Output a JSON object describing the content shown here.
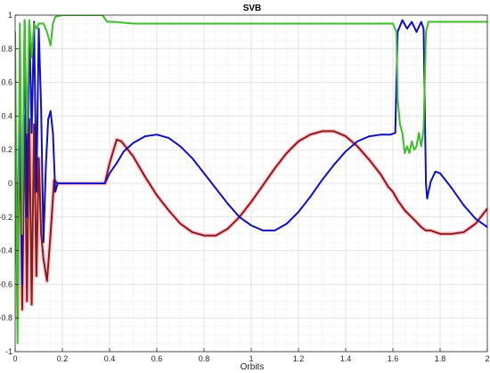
{
  "chart_data": {
    "type": "line",
    "title": "SVB",
    "xlabel": "Orbits",
    "ylabel": "",
    "xlim": [
      0,
      2
    ],
    "ylim": [
      -1,
      1
    ],
    "grid": true,
    "legend": "none",
    "x_ticks": [
      "0",
      "0.2",
      "0.4",
      "0.6",
      "0.8",
      "1",
      "1.2",
      "1.4",
      "1.6",
      "1.8",
      "2"
    ],
    "y_ticks": [
      "-1",
      "-0.8",
      "-0.6",
      "-0.4",
      "-0.2",
      "0",
      "0.2",
      "0.4",
      "0.6",
      "0.8",
      "1"
    ],
    "colors": {
      "blue": "#1010c0",
      "red": "#8b1a1a",
      "green": "#3dbd2a",
      "red_halo": "#ff9fb0",
      "grid": "#e3e3e3",
      "axis": "#262626"
    },
    "series": [
      {
        "color": "blue",
        "points": [
          [
            0.0,
            0.2
          ],
          [
            0.01,
            -0.3
          ],
          [
            0.02,
            0.55
          ],
          [
            0.03,
            -0.6
          ],
          [
            0.04,
            0.97
          ],
          [
            0.05,
            -0.2
          ],
          [
            0.06,
            0.95
          ],
          [
            0.07,
            0.3
          ],
          [
            0.08,
            0.96
          ],
          [
            0.09,
            -0.05
          ],
          [
            0.1,
            0.92
          ],
          [
            0.11,
            0.45
          ],
          [
            0.12,
            -0.35
          ],
          [
            0.13,
            0.1
          ],
          [
            0.14,
            0.38
          ],
          [
            0.15,
            0.43
          ],
          [
            0.16,
            0.3
          ],
          [
            0.17,
            -0.05
          ],
          [
            0.18,
            0.0
          ],
          [
            0.2,
            0.0
          ],
          [
            0.25,
            0.0
          ],
          [
            0.3,
            0.0
          ],
          [
            0.36,
            0.0
          ],
          [
            0.38,
            0.0
          ],
          [
            0.4,
            0.06
          ],
          [
            0.43,
            0.12
          ],
          [
            0.46,
            0.19
          ],
          [
            0.5,
            0.24
          ],
          [
            0.55,
            0.28
          ],
          [
            0.6,
            0.29
          ],
          [
            0.65,
            0.27
          ],
          [
            0.7,
            0.22
          ],
          [
            0.75,
            0.15
          ],
          [
            0.8,
            0.06
          ],
          [
            0.85,
            -0.03
          ],
          [
            0.9,
            -0.12
          ],
          [
            0.95,
            -0.2
          ],
          [
            1.0,
            -0.25
          ],
          [
            1.05,
            -0.28
          ],
          [
            1.1,
            -0.28
          ],
          [
            1.15,
            -0.24
          ],
          [
            1.2,
            -0.17
          ],
          [
            1.25,
            -0.08
          ],
          [
            1.3,
            0.02
          ],
          [
            1.35,
            0.11
          ],
          [
            1.4,
            0.19
          ],
          [
            1.45,
            0.25
          ],
          [
            1.5,
            0.28
          ],
          [
            1.55,
            0.29
          ],
          [
            1.59,
            0.29
          ],
          [
            1.61,
            0.3
          ],
          [
            1.62,
            0.9
          ],
          [
            1.64,
            0.97
          ],
          [
            1.66,
            0.92
          ],
          [
            1.68,
            0.96
          ],
          [
            1.7,
            0.9
          ],
          [
            1.72,
            0.96
          ],
          [
            1.73,
            0.92
          ],
          [
            1.74,
            0.0
          ],
          [
            1.745,
            -0.09
          ],
          [
            1.76,
            0.01
          ],
          [
            1.78,
            0.07
          ],
          [
            1.8,
            0.06
          ],
          [
            1.85,
            -0.03
          ],
          [
            1.9,
            -0.13
          ],
          [
            1.95,
            -0.21
          ],
          [
            2.0,
            -0.26
          ]
        ]
      },
      {
        "color": "red",
        "points": [
          [
            0.0,
            0.2
          ],
          [
            0.01,
            -0.8
          ],
          [
            0.02,
            0.35
          ],
          [
            0.03,
            -0.75
          ],
          [
            0.04,
            0.4
          ],
          [
            0.05,
            -0.7
          ],
          [
            0.06,
            0.38
          ],
          [
            0.07,
            -0.72
          ],
          [
            0.08,
            0.35
          ],
          [
            0.09,
            -0.55
          ],
          [
            0.1,
            0.15
          ],
          [
            0.11,
            -0.3
          ],
          [
            0.12,
            -0.45
          ],
          [
            0.135,
            -0.58
          ],
          [
            0.15,
            -0.3
          ],
          [
            0.165,
            0.02
          ],
          [
            0.18,
            0.0
          ],
          [
            0.2,
            0.0
          ],
          [
            0.25,
            0.0
          ],
          [
            0.3,
            0.0
          ],
          [
            0.36,
            0.0
          ],
          [
            0.38,
            0.0
          ],
          [
            0.4,
            0.12
          ],
          [
            0.43,
            0.26
          ],
          [
            0.45,
            0.25
          ],
          [
            0.5,
            0.16
          ],
          [
            0.55,
            0.04
          ],
          [
            0.6,
            -0.07
          ],
          [
            0.65,
            -0.16
          ],
          [
            0.7,
            -0.24
          ],
          [
            0.75,
            -0.29
          ],
          [
            0.8,
            -0.31
          ],
          [
            0.85,
            -0.31
          ],
          [
            0.9,
            -0.27
          ],
          [
            0.95,
            -0.2
          ],
          [
            1.0,
            -0.11
          ],
          [
            1.05,
            -0.01
          ],
          [
            1.1,
            0.09
          ],
          [
            1.15,
            0.18
          ],
          [
            1.2,
            0.25
          ],
          [
            1.25,
            0.29
          ],
          [
            1.3,
            0.31
          ],
          [
            1.35,
            0.31
          ],
          [
            1.4,
            0.28
          ],
          [
            1.45,
            0.22
          ],
          [
            1.5,
            0.14
          ],
          [
            1.55,
            0.05
          ],
          [
            1.58,
            -0.02
          ],
          [
            1.6,
            -0.05
          ],
          [
            1.62,
            -0.1
          ],
          [
            1.65,
            -0.16
          ],
          [
            1.7,
            -0.23
          ],
          [
            1.72,
            -0.26
          ],
          [
            1.74,
            -0.28
          ],
          [
            1.76,
            -0.28
          ],
          [
            1.8,
            -0.3
          ],
          [
            1.85,
            -0.3
          ],
          [
            1.9,
            -0.29
          ],
          [
            1.95,
            -0.24
          ],
          [
            2.0,
            -0.15
          ]
        ]
      },
      {
        "color": "green",
        "points": [
          [
            0.0,
            0.9
          ],
          [
            0.01,
            -0.95
          ],
          [
            0.02,
            0.95
          ],
          [
            0.03,
            -0.3
          ],
          [
            0.04,
            0.97
          ],
          [
            0.05,
            0.3
          ],
          [
            0.06,
            0.97
          ],
          [
            0.07,
            0.75
          ],
          [
            0.08,
            0.95
          ],
          [
            0.09,
            0.92
          ],
          [
            0.1,
            0.95
          ],
          [
            0.12,
            0.95
          ],
          [
            0.135,
            0.9
          ],
          [
            0.15,
            0.82
          ],
          [
            0.16,
            0.95
          ],
          [
            0.17,
            0.99
          ],
          [
            0.2,
            1.0
          ],
          [
            0.3,
            1.0
          ],
          [
            0.37,
            1.0
          ],
          [
            0.39,
            0.96
          ],
          [
            0.42,
            0.96
          ],
          [
            0.5,
            0.95
          ],
          [
            0.7,
            0.95
          ],
          [
            1.0,
            0.95
          ],
          [
            1.3,
            0.95
          ],
          [
            1.6,
            0.95
          ],
          [
            1.615,
            0.9
          ],
          [
            1.62,
            0.5
          ],
          [
            1.63,
            0.35
          ],
          [
            1.64,
            0.3
          ],
          [
            1.65,
            0.18
          ],
          [
            1.66,
            0.22
          ],
          [
            1.67,
            0.18
          ],
          [
            1.68,
            0.25
          ],
          [
            1.69,
            0.2
          ],
          [
            1.7,
            0.22
          ],
          [
            1.71,
            0.3
          ],
          [
            1.72,
            0.22
          ],
          [
            1.73,
            0.32
          ],
          [
            1.74,
            0.9
          ],
          [
            1.75,
            0.96
          ],
          [
            1.8,
            0.96
          ],
          [
            1.9,
            0.96
          ],
          [
            2.0,
            0.96
          ]
        ]
      }
    ]
  }
}
